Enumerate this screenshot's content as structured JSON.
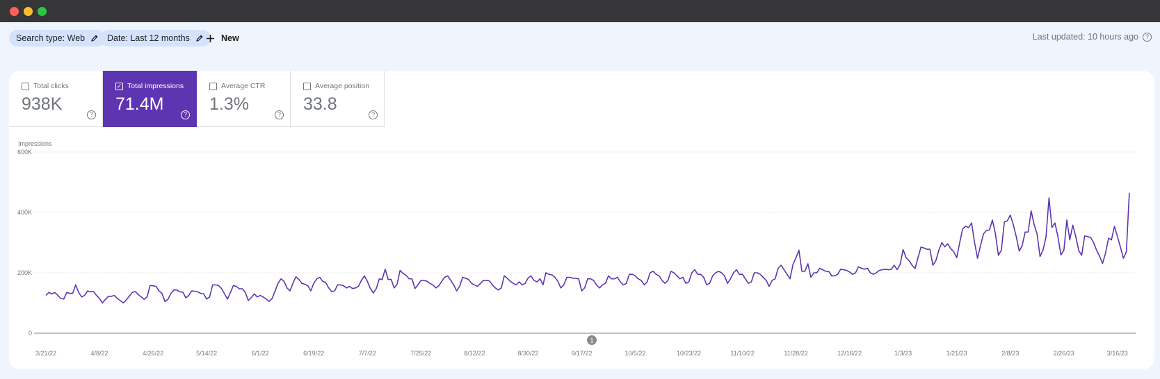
{
  "window": {
    "traffic_lights": [
      "#ff5f57",
      "#febc2e",
      "#28c840"
    ]
  },
  "filters": {
    "chips": [
      {
        "label": "Search type: Web",
        "icon": "pencil-icon"
      },
      {
        "label": "Date: Last 12 months",
        "icon": "pencil-icon"
      }
    ],
    "new_label": "New"
  },
  "last_updated": "Last updated: 10 hours ago",
  "metrics": [
    {
      "label": "Total clicks",
      "value": "938K",
      "checked": false
    },
    {
      "label": "Total impressions",
      "value": "71.4M",
      "checked": true
    },
    {
      "label": "Average CTR",
      "value": "1.3%",
      "checked": false
    },
    {
      "label": "Average position",
      "value": "33.8",
      "checked": false
    }
  ],
  "colors": {
    "accent": "#5e35b1",
    "line": "#5e35b1",
    "chip_bg": "#d3e3fd"
  },
  "annotation": {
    "label": "1"
  },
  "chart_data": {
    "type": "line",
    "ylabel": "Impressions",
    "ylim": [
      0,
      600000
    ],
    "yticks": [
      "0",
      "200K",
      "400K",
      "600K"
    ],
    "ytick_values": [
      0,
      200000,
      400000,
      600000
    ],
    "xlim": [
      "2022-03-21",
      "2023-03-20"
    ],
    "xticks": [
      "3/21/22",
      "4/8/22",
      "4/26/22",
      "5/14/22",
      "6/1/22",
      "6/19/22",
      "7/7/22",
      "7/25/22",
      "8/12/22",
      "8/30/22",
      "9/17/22",
      "10/5/22",
      "10/23/22",
      "11/10/22",
      "11/28/22",
      "12/16/22",
      "1/3/23",
      "1/21/23",
      "2/8/23",
      "2/26/23",
      "3/16/23"
    ],
    "grid": true,
    "series": [
      {
        "values": [
          125000,
          135000,
          130000,
          135000,
          125000,
          115000,
          113000,
          135000,
          132000,
          132000,
          160000,
          135000,
          120000,
          125000,
          140000,
          137000,
          138000,
          125000,
          115000,
          100000,
          112000,
          122000,
          122000,
          125000,
          115000,
          108000,
          100000,
          110000,
          122000,
          135000,
          138000,
          128000,
          120000,
          112000,
          120000,
          158000,
          157000,
          155000,
          140000,
          132000,
          105000,
          112000,
          132000,
          143000,
          143000,
          137000,
          136000,
          117000,
          125000,
          140000,
          139000,
          137000,
          132000,
          130000,
          113000,
          120000,
          160000,
          160000,
          158000,
          148000,
          130000,
          113000,
          135000,
          158000,
          155000,
          147000,
          147000,
          135000,
          108000,
          118000,
          130000,
          120000,
          125000,
          120000,
          113000,
          105000,
          115000,
          140000,
          165000,
          180000,
          172000,
          150000,
          140000,
          165000,
          187000,
          178000,
          165000,
          162000,
          157000,
          140000,
          165000,
          180000,
          185000,
          172000,
          168000,
          150000,
          138000,
          140000,
          160000,
          160000,
          157000,
          150000,
          155000,
          148000,
          150000,
          155000,
          175000,
          190000,
          172000,
          148000,
          133000,
          148000,
          180000,
          178000,
          212000,
          178000,
          178000,
          150000,
          162000,
          208000,
          198000,
          192000,
          180000,
          180000,
          148000,
          160000,
          175000,
          175000,
          172000,
          165000,
          160000,
          150000,
          157000,
          172000,
          185000,
          190000,
          175000,
          160000,
          140000,
          155000,
          185000,
          182000,
          178000,
          165000,
          160000,
          155000,
          165000,
          175000,
          175000,
          173000,
          160000,
          150000,
          143000,
          150000,
          190000,
          182000,
          172000,
          165000,
          160000,
          170000,
          160000,
          165000,
          183000,
          190000,
          175000,
          170000,
          180000,
          160000,
          200000,
          195000,
          193000,
          185000,
          172000,
          150000,
          160000,
          185000,
          185000,
          182000,
          182000,
          180000,
          140000,
          150000,
          180000,
          180000,
          175000,
          160000,
          150000,
          160000,
          165000,
          190000,
          180000,
          180000,
          185000,
          170000,
          160000,
          165000,
          195000,
          195000,
          190000,
          180000,
          175000,
          160000,
          170000,
          200000,
          205000,
          195000,
          190000,
          175000,
          165000,
          175000,
          205000,
          200000,
          190000,
          180000,
          185000,
          165000,
          170000,
          200000,
          210000,
          195000,
          195000,
          185000,
          160000,
          165000,
          190000,
          200000,
          205000,
          200000,
          190000,
          165000,
          180000,
          200000,
          210000,
          195000,
          195000,
          180000,
          165000,
          170000,
          200000,
          200000,
          195000,
          185000,
          175000,
          155000,
          175000,
          180000,
          215000,
          225000,
          210000,
          195000,
          180000,
          228000,
          250000,
          275000,
          205000,
          205000,
          230000,
          185000,
          200000,
          200000,
          215000,
          210000,
          205000,
          205000,
          190000,
          190000,
          195000,
          212000,
          210000,
          208000,
          203000,
          195000,
          200000,
          220000,
          215000,
          212000,
          215000,
          200000,
          195000,
          200000,
          208000,
          210000,
          212000,
          210000,
          211000,
          225000,
          210000,
          228000,
          277000,
          250000,
          240000,
          225000,
          214000,
          250000,
          285000,
          282000,
          278000,
          278000,
          225000,
          240000,
          275000,
          300000,
          286000,
          296000,
          280000,
          270000,
          250000,
          300000,
          345000,
          354000,
          350000,
          365000,
          300000,
          248000,
          290000,
          329000,
          340000,
          342000,
          375000,
          330000,
          258000,
          275000,
          369000,
          372000,
          391000,
          360000,
          320000,
          272000,
          290000,
          335000,
          335000,
          405000,
          360000,
          329000,
          254000,
          275000,
          319000,
          448000,
          350000,
          365000,
          320000,
          259000,
          275000,
          375000,
          309000,
          358000,
          320000,
          273000,
          258000,
          322000,
          320000,
          317000,
          300000,
          275000,
          255000,
          231000,
          265000,
          315000,
          309000,
          354000,
          320000,
          285000,
          248000,
          269000,
          465000
        ]
      }
    ]
  }
}
